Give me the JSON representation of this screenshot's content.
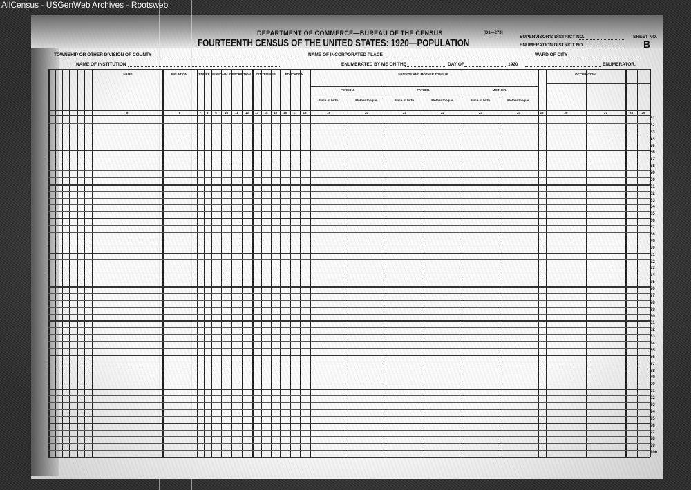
{
  "watermark": "AllCensus - USGenWeb Archives - Rootsweb",
  "header": {
    "department": "DEPARTMENT OF COMMERCE—BUREAU OF THE CENSUS",
    "form_number": "[D1—273]",
    "title": "FOURTEENTH CENSUS OF THE UNITED STATES: 1920—POPULATION",
    "supervisors_district": "SUPERVISOR'S DISTRICT NO.",
    "enumeration_district": "ENUMERATION DISTRICT NO.",
    "sheet_no": "SHEET NO.",
    "sheet_letter": "B",
    "township": "TOWNSHIP OR OTHER DIVISION OF COUNTY",
    "institution": "NAME OF INSTITUTION",
    "incorporated_place": "NAME OF INCORPORATED PLACE",
    "ward": "WARD OF CITY",
    "enumerated_by": "ENUMERATED BY ME ON THE",
    "day_of": "DAY OF",
    "year": "1920",
    "enumerator": "ENUMERATOR."
  },
  "column_groups": [
    "NAME",
    "RELATION.",
    "TENURE.",
    "PERSONAL DESCRIPTION.",
    "CITIZENSHIP.",
    "EDUCATION.",
    "NATIVITY AND MOTHER TONGUE.",
    "OCCUPATION."
  ],
  "nativity_subgroups": [
    "PERSON.",
    "FATHER.",
    "MOTHER."
  ],
  "nativity_subheads": [
    "Place of birth.",
    "Mother tongue.",
    "Place of birth.",
    "Mother tongue.",
    "Place of birth.",
    "Mother tongue."
  ],
  "column_numbers": [
    "5",
    "6",
    "7",
    "8",
    "9",
    "10",
    "11",
    "12",
    "13",
    "14",
    "15",
    "16",
    "17",
    "18",
    "19",
    "20",
    "21",
    "22",
    "23",
    "24",
    "25",
    "26",
    "27",
    "28",
    "29"
  ],
  "row_numbers": [
    "51",
    "52",
    "53",
    "54",
    "55",
    "56",
    "57",
    "58",
    "59",
    "60",
    "61",
    "62",
    "63",
    "64",
    "65",
    "66",
    "67",
    "68",
    "69",
    "70",
    "71",
    "72",
    "73",
    "74",
    "75",
    "76",
    "77",
    "78",
    "79",
    "80",
    "81",
    "82",
    "83",
    "84",
    "85",
    "86",
    "87",
    "88",
    "89",
    "90",
    "91",
    "92",
    "93",
    "94",
    "95",
    "96",
    "97",
    "98",
    "99",
    "100"
  ]
}
